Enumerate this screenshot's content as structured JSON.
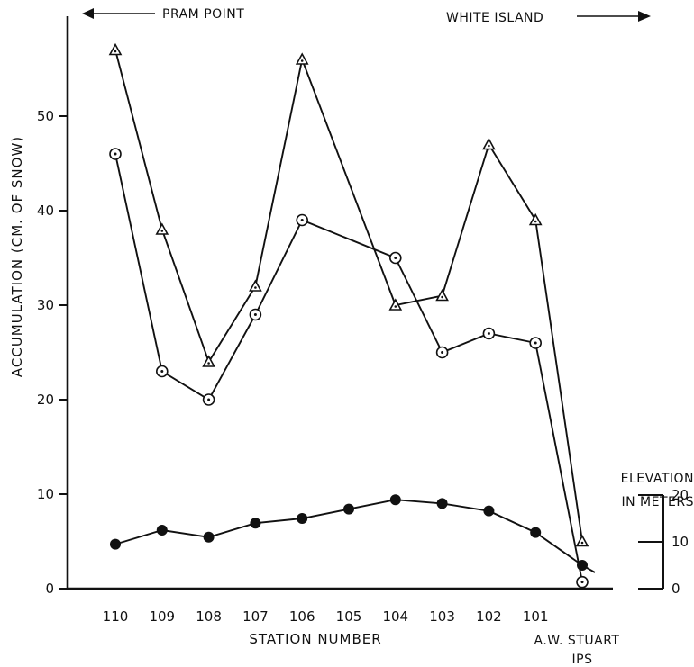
{
  "chart_data": {
    "type": "line",
    "xlabel": "STATION NUMBER",
    "ylabel": "ACCUMULATION (CM. OF SNOW)",
    "categories": [
      "110",
      "109",
      "108",
      "107",
      "106",
      "105",
      "104",
      "103",
      "102",
      "101",
      "A.W. STUART IPS"
    ],
    "category_labels": [
      "110",
      "109",
      "108",
      "107",
      "106",
      "105",
      "104",
      "103",
      "102",
      "101"
    ],
    "end_station_label": {
      "line1": "A.W. STUART",
      "line2": "IPS"
    },
    "ylim": [
      0,
      60
    ],
    "yticks": [
      0,
      10,
      20,
      30,
      40,
      50
    ],
    "grid": false,
    "legend": "none",
    "direction_labels": {
      "left": "PRAM POINT",
      "right": "WHITE ISLAND"
    },
    "series": [
      {
        "marker": "triangle",
        "values": [
          57,
          38,
          24,
          32,
          56,
          null,
          30,
          31,
          47,
          39,
          5
        ]
      },
      {
        "marker": "dotted-circle",
        "values": [
          46,
          23,
          20,
          29,
          39,
          null,
          35,
          25,
          27,
          26,
          0.7
        ]
      },
      {
        "marker": "filled-circle",
        "axis": "right",
        "values": [
          9.5,
          12.5,
          11,
          14,
          15,
          17,
          19,
          18.2,
          16.6,
          12,
          5
        ]
      }
    ],
    "secondary_axis": {
      "title_line1": "ELEVATION",
      "title_line2": "IN METERS",
      "ylim": [
        0,
        20
      ],
      "ticks": [
        0,
        10,
        20
      ]
    }
  }
}
